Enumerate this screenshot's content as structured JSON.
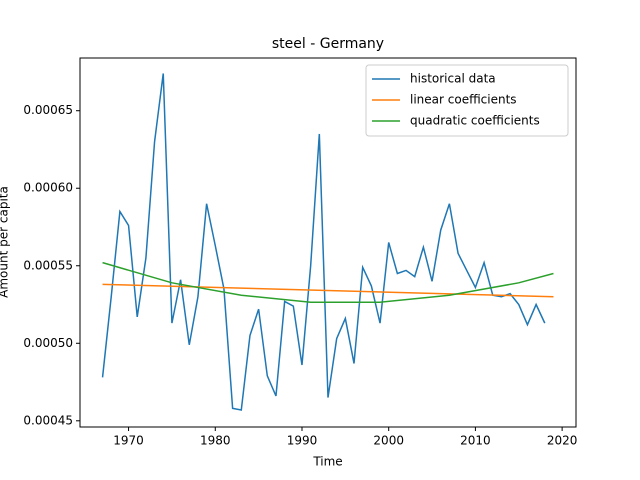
{
  "chart_data": {
    "type": "line",
    "title": "steel - Germany",
    "x_label": "Time",
    "y_label": "Amount per capita",
    "x": [
      1967,
      1968,
      1969,
      1970,
      1971,
      1972,
      1973,
      1974,
      1975,
      1976,
      1977,
      1978,
      1979,
      1980,
      1981,
      1982,
      1983,
      1984,
      1985,
      1986,
      1987,
      1988,
      1989,
      1990,
      1991,
      1992,
      1993,
      1994,
      1995,
      1996,
      1997,
      1998,
      1999,
      2000,
      2001,
      2002,
      2003,
      2004,
      2005,
      2006,
      2007,
      2008,
      2009,
      2010,
      2011,
      2012,
      2013,
      2014,
      2015,
      2016,
      2017,
      2018
    ],
    "series": [
      {
        "name": "historical data",
        "color": "#1f77b4",
        "values": [
          0.000478,
          0.00053,
          0.000585,
          0.000576,
          0.000517,
          0.000555,
          0.00063,
          0.000674,
          0.000513,
          0.000541,
          0.000499,
          0.00053,
          0.00059,
          0.000563,
          0.000535,
          0.000458,
          0.000457,
          0.000505,
          0.000522,
          0.000479,
          0.000466,
          0.000527,
          0.000524,
          0.000486,
          0.00055,
          0.000635,
          0.000465,
          0.000503,
          0.000516,
          0.000487,
          0.000549,
          0.000537,
          0.000513,
          0.000565,
          0.000545,
          0.000547,
          0.000543,
          0.000562,
          0.00054,
          0.000573,
          0.00059,
          0.000558,
          0.000547,
          0.000536,
          0.000552,
          0.000531,
          0.00053,
          0.000532,
          0.000525,
          0.000512,
          0.000525,
          0.000513
        ]
      },
      {
        "name": "linear coefficients",
        "color": "#ff7f0e",
        "x": [
          1967,
          2019
        ],
        "values": [
          0.000538,
          0.00053
        ]
      },
      {
        "name": "quadratic coefficients",
        "color": "#2ca02c",
        "x": [
          1967,
          1975,
          1983,
          1991,
          1999,
          2007,
          2015,
          2019
        ],
        "values": [
          0.000552,
          0.000539,
          0.000531,
          0.0005265,
          0.0005265,
          0.000531,
          0.000539,
          0.000545
        ]
      }
    ],
    "xlim": [
      1964.4,
      2021.6
    ],
    "xticks": [
      1970,
      1980,
      1990,
      2000,
      2010,
      2020
    ],
    "ylim": [
      0.000446,
      0.000684
    ],
    "yticks": [
      {
        "value": 0.00045,
        "label": "0.00045"
      },
      {
        "value": 0.0005,
        "label": "0.00050"
      },
      {
        "value": 0.00055,
        "label": "0.00055"
      },
      {
        "value": 0.0006,
        "label": "0.00060"
      },
      {
        "value": 0.00065,
        "label": "0.00065"
      }
    ],
    "legend": "upper right"
  }
}
